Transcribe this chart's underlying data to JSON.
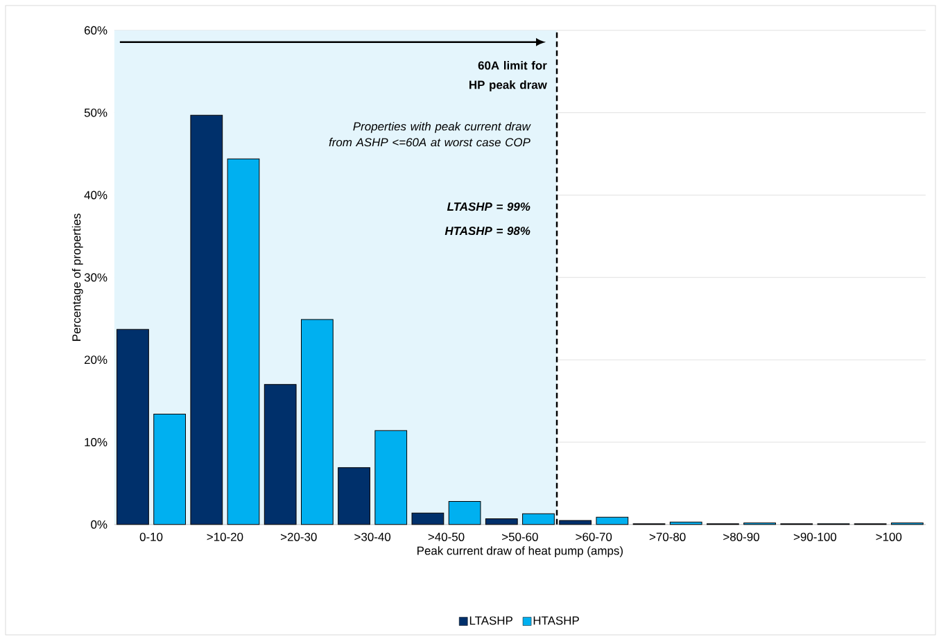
{
  "chart_data": {
    "type": "bar",
    "xlabel": "Peak current draw of heat pump (amps)",
    "ylabel": "Percentage of properties",
    "categories": [
      "0-10",
      ">10-20",
      ">20-30",
      ">30-40",
      ">40-50",
      ">50-60",
      ">60-70",
      ">70-80",
      ">80-90",
      ">90-100",
      ">100"
    ],
    "series": [
      {
        "name": "LTASHP",
        "color": "#00306b",
        "values": [
          23.7,
          49.7,
          17.0,
          6.9,
          1.4,
          0.7,
          0.5,
          0.1,
          0.1,
          0.1,
          0.1
        ]
      },
      {
        "name": "HTASHP",
        "color": "#00b0f0",
        "values": [
          13.4,
          44.4,
          24.9,
          11.4,
          2.8,
          1.3,
          0.9,
          0.3,
          0.2,
          0.1,
          0.2
        ]
      }
    ],
    "ylim": [
      0,
      60
    ],
    "yticks": [
      {
        "value": 0,
        "label": "0%"
      },
      {
        "value": 10,
        "label": "10%"
      },
      {
        "value": 20,
        "label": "20%"
      },
      {
        "value": 30,
        "label": "30%"
      },
      {
        "value": 40,
        "label": "40%"
      },
      {
        "value": 50,
        "label": "50%"
      },
      {
        "value": 60,
        "label": "60%"
      }
    ],
    "grid": "y",
    "legend": "bottom",
    "bands": [
      {
        "axis": "x",
        "from": "0-10",
        "to": ">50-60",
        "color": "#e4f5fc"
      }
    ],
    "ref_lines": [
      {
        "axis": "x",
        "value": ">50-60",
        "label": "60A limit for HP peak draw",
        "line_style": "dashed",
        "color": "#000000"
      }
    ],
    "annotations": [
      "Properties with peak current draw from ASHP <=60A at worst case COP",
      "LTASHP = 99%",
      "HTASHP = 98%"
    ]
  }
}
